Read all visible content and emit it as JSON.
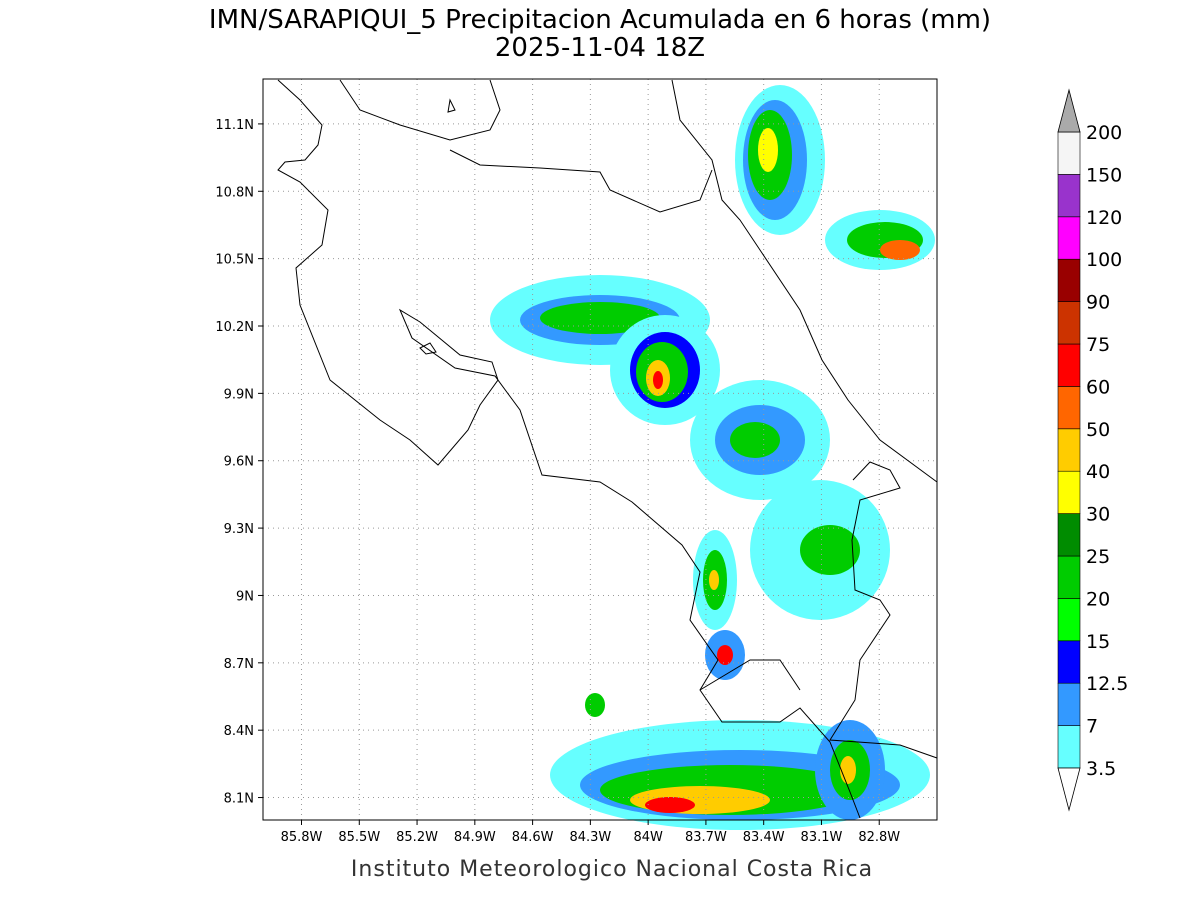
{
  "title": "IMN/SARAPIQUI_5 Precipitacion Acumulada en 6 horas (mm)",
  "subtitle": "2025-11-04 18Z",
  "footer": "Instituto Meteorologico Nacional Costa Rica",
  "map": {
    "xlim": [
      -86.0,
      -82.5
    ],
    "ylim": [
      8.0,
      11.3
    ],
    "xticks": [
      {
        "value": -85.8,
        "label": "85.8W"
      },
      {
        "value": -85.5,
        "label": "85.5W"
      },
      {
        "value": -85.2,
        "label": "85.2W"
      },
      {
        "value": -84.9,
        "label": "84.9W"
      },
      {
        "value": -84.6,
        "label": "84.6W"
      },
      {
        "value": -84.3,
        "label": "84.3W"
      },
      {
        "value": -84.0,
        "label": "84W"
      },
      {
        "value": -83.7,
        "label": "83.7W"
      },
      {
        "value": -83.4,
        "label": "83.4W"
      },
      {
        "value": -83.1,
        "label": "83.1W"
      },
      {
        "value": -82.8,
        "label": "82.8W"
      }
    ],
    "yticks": [
      {
        "value": 8.1,
        "label": "8.1N"
      },
      {
        "value": 8.4,
        "label": "8.4N"
      },
      {
        "value": 8.7,
        "label": "8.7N"
      },
      {
        "value": 9.0,
        "label": "9N"
      },
      {
        "value": 9.3,
        "label": "9.3N"
      },
      {
        "value": 9.6,
        "label": "9.6N"
      },
      {
        "value": 9.9,
        "label": "9.9N"
      },
      {
        "value": 10.2,
        "label": "10.2N"
      },
      {
        "value": 10.5,
        "label": "10.5N"
      },
      {
        "value": 10.8,
        "label": "10.8N"
      },
      {
        "value": 11.1,
        "label": "11.1N"
      }
    ],
    "grid": true
  },
  "colorbar": {
    "levels": [
      3.5,
      7,
      12.5,
      15,
      20,
      25,
      30,
      40,
      50,
      60,
      75,
      90,
      100,
      120,
      150,
      200
    ],
    "colors": [
      "#66ffff",
      "#3399ff",
      "#0000ff",
      "#00ff00",
      "#00cc00",
      "#008c00",
      "#ffff00",
      "#ffcc00",
      "#ff6600",
      "#ff0000",
      "#cc3300",
      "#990000",
      "#ff00ff",
      "#9933cc",
      "#f5f5f5"
    ],
    "under_color": "#ffffff",
    "over_color": "#aaaaaa"
  }
}
